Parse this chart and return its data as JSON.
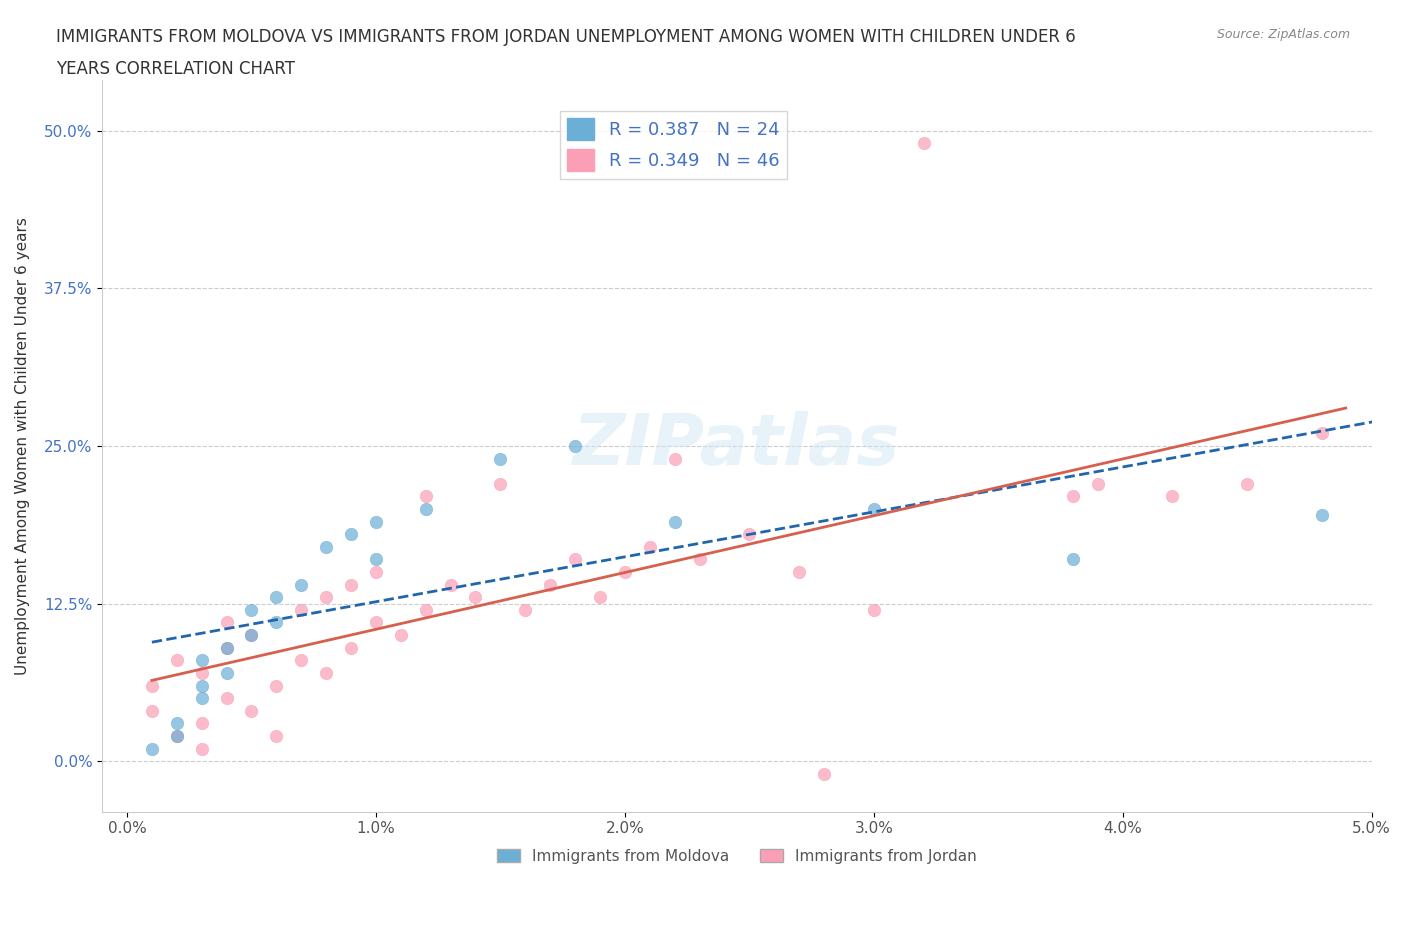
{
  "title_line1": "IMMIGRANTS FROM MOLDOVA VS IMMIGRANTS FROM JORDAN UNEMPLOYMENT AMONG WOMEN WITH CHILDREN UNDER 6",
  "title_line2": "YEARS CORRELATION CHART",
  "source": "Source: ZipAtlas.com",
  "ylabel": "Unemployment Among Women with Children Under 6 years",
  "xlabel_ticks": [
    "0.0%",
    "1.0%",
    "2.0%",
    "3.0%",
    "4.0%",
    "5.0%"
  ],
  "ylabel_ticks": [
    "0.0%",
    "12.5%",
    "25.0%",
    "37.5%",
    "50.0%"
  ],
  "xlim": [
    0.0,
    0.05
  ],
  "ylim": [
    -0.02,
    0.52
  ],
  "legend_moldova": "Immigrants from Moldova",
  "legend_jordan": "Immigrants from Jordan",
  "R_moldova": "0.387",
  "N_moldova": "24",
  "R_jordan": "0.349",
  "N_jordan": "46",
  "moldova_color": "#6baed6",
  "jordan_color": "#fa9fb5",
  "moldova_line_color": "#2166ac",
  "jordan_line_color": "#d6604d",
  "watermark": "ZIPatlas",
  "moldova_x": [
    0.001,
    0.002,
    0.002,
    0.003,
    0.003,
    0.003,
    0.004,
    0.004,
    0.005,
    0.005,
    0.006,
    0.006,
    0.007,
    0.008,
    0.009,
    0.01,
    0.01,
    0.012,
    0.015,
    0.018,
    0.022,
    0.03,
    0.038,
    0.048
  ],
  "moldova_y": [
    0.01,
    0.02,
    0.03,
    0.05,
    0.06,
    0.08,
    0.07,
    0.09,
    0.1,
    0.12,
    0.11,
    0.13,
    0.14,
    0.17,
    0.18,
    0.16,
    0.19,
    0.2,
    0.24,
    0.25,
    0.19,
    0.2,
    0.16,
    0.195
  ],
  "jordan_x": [
    0.001,
    0.001,
    0.002,
    0.002,
    0.003,
    0.003,
    0.003,
    0.004,
    0.004,
    0.004,
    0.005,
    0.005,
    0.006,
    0.006,
    0.007,
    0.007,
    0.008,
    0.008,
    0.009,
    0.009,
    0.01,
    0.01,
    0.011,
    0.012,
    0.012,
    0.013,
    0.014,
    0.015,
    0.016,
    0.017,
    0.018,
    0.019,
    0.02,
    0.021,
    0.022,
    0.023,
    0.025,
    0.027,
    0.028,
    0.03,
    0.032,
    0.038,
    0.039,
    0.042,
    0.045,
    0.048
  ],
  "jordan_y": [
    0.04,
    0.06,
    0.02,
    0.08,
    0.01,
    0.03,
    0.07,
    0.05,
    0.09,
    0.11,
    0.04,
    0.1,
    0.02,
    0.06,
    0.08,
    0.12,
    0.07,
    0.13,
    0.09,
    0.14,
    0.11,
    0.15,
    0.1,
    0.12,
    0.21,
    0.14,
    0.13,
    0.22,
    0.12,
    0.14,
    0.16,
    0.13,
    0.15,
    0.17,
    0.24,
    0.16,
    0.18,
    0.15,
    -0.01,
    0.12,
    0.49,
    0.21,
    0.22,
    0.21,
    0.22,
    0.26
  ]
}
